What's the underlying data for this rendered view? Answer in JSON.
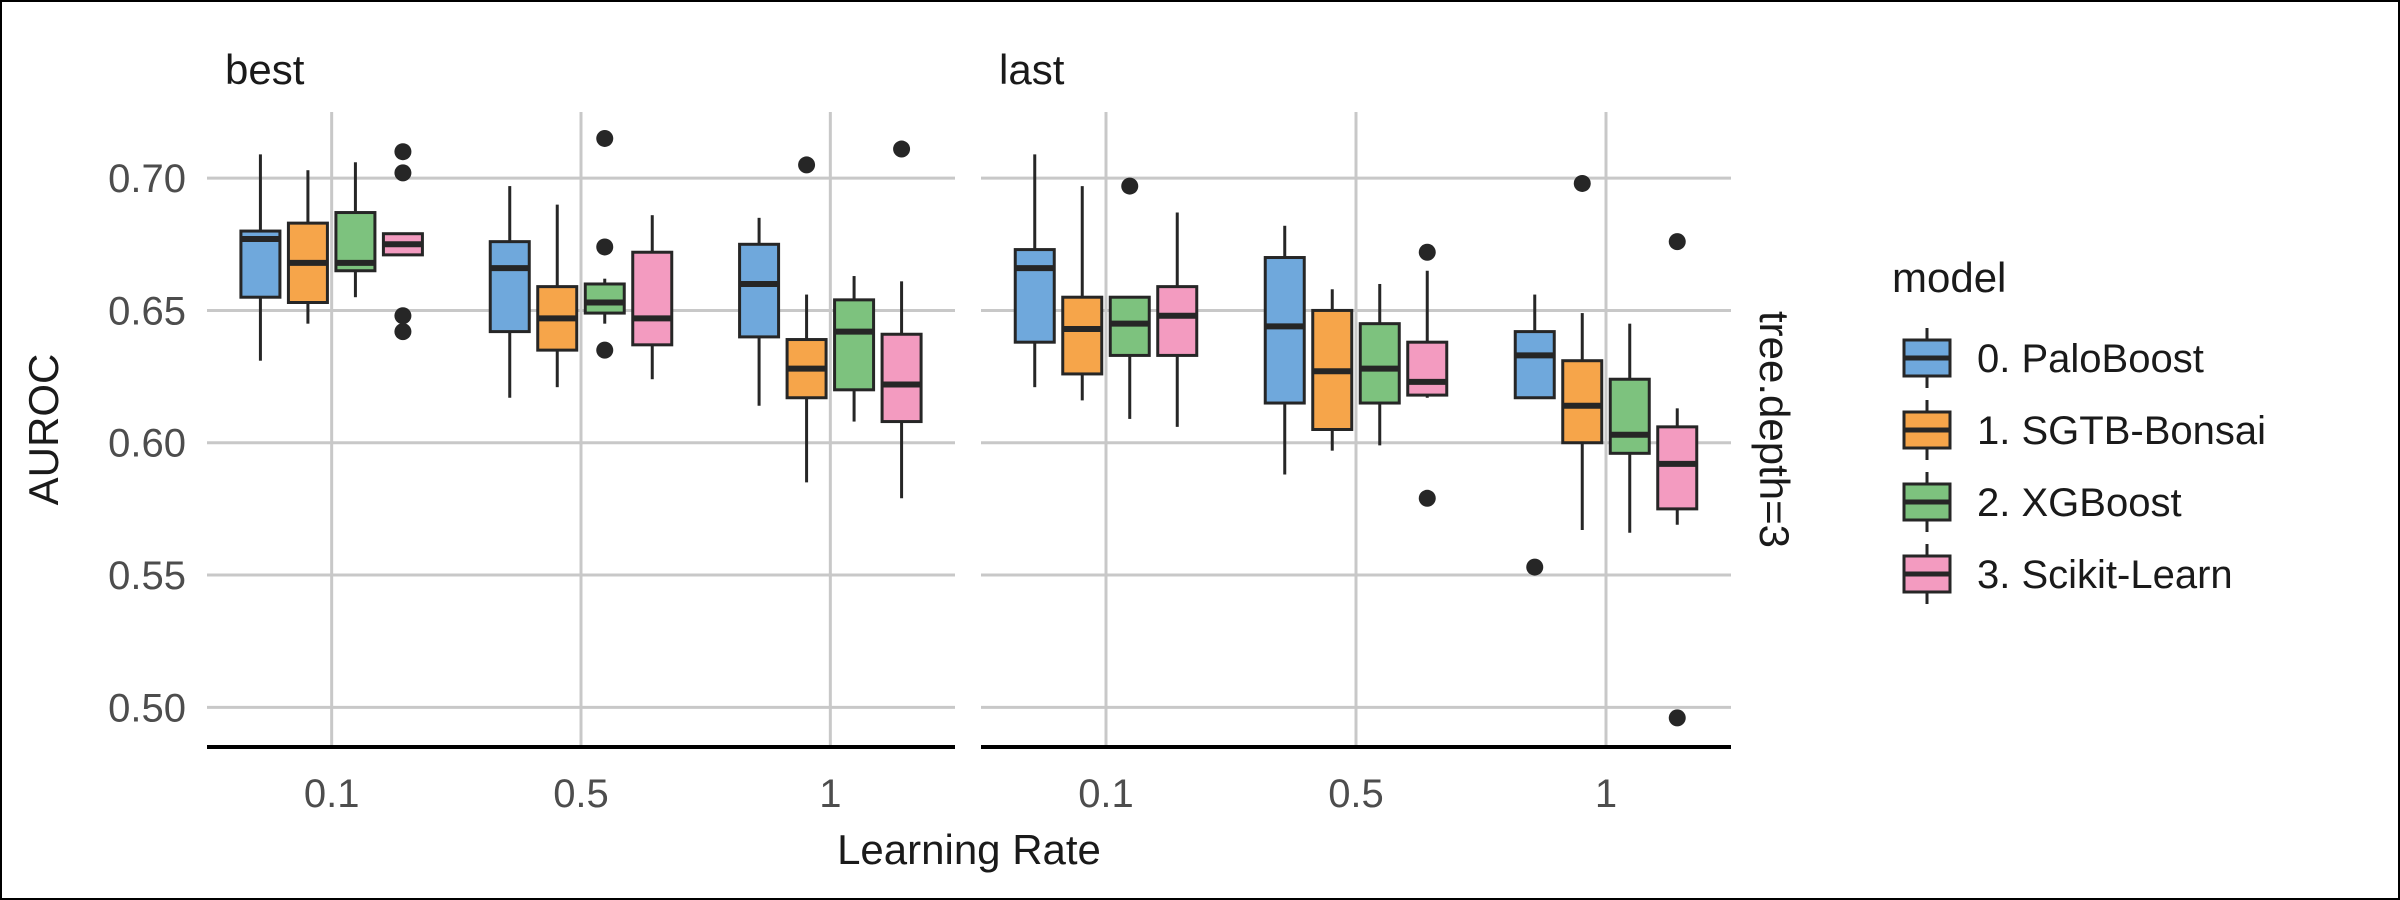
{
  "chart_data": {
    "type": "boxplot",
    "xlabel": "Learning Rate",
    "ylabel": "AUROC",
    "ylim": [
      0.485,
      0.725
    ],
    "yticks": [
      "0.50",
      "0.55",
      "0.60",
      "0.65",
      "0.70"
    ],
    "ytick_values": [
      0.5,
      0.55,
      0.6,
      0.65,
      0.7
    ],
    "categories": [
      "0.1",
      "0.5",
      "1"
    ],
    "row_strip": "tree.depth=3",
    "grid": true,
    "legend": {
      "title": "model",
      "placement": "right",
      "entries": [
        {
          "name": "0. PaloBoost",
          "color": "#6fa8dc"
        },
        {
          "name": "1. SGTB-Bonsai",
          "color": "#f6a54a"
        },
        {
          "name": "2. XGBoost",
          "color": "#7dc27e"
        },
        {
          "name": "3. Scikit-Learn",
          "color": "#f39bc0"
        }
      ]
    },
    "facets": [
      {
        "label": "best",
        "groups": [
          {
            "category": "0.1",
            "boxes": [
              {
                "min": 0.631,
                "q1": 0.655,
                "median": 0.677,
                "q3": 0.68,
                "max": 0.709,
                "outliers": []
              },
              {
                "min": 0.645,
                "q1": 0.653,
                "median": 0.668,
                "q3": 0.683,
                "max": 0.703,
                "outliers": []
              },
              {
                "min": 0.655,
                "q1": 0.665,
                "median": 0.668,
                "q3": 0.687,
                "max": 0.706,
                "outliers": []
              },
              {
                "min": 0.671,
                "q1": 0.671,
                "median": 0.675,
                "q3": 0.679,
                "max": 0.679,
                "outliers": [
                  0.71,
                  0.702,
                  0.648,
                  0.642
                ]
              }
            ]
          },
          {
            "category": "0.5",
            "boxes": [
              {
                "min": 0.617,
                "q1": 0.642,
                "median": 0.666,
                "q3": 0.676,
                "max": 0.697,
                "outliers": []
              },
              {
                "min": 0.621,
                "q1": 0.635,
                "median": 0.647,
                "q3": 0.659,
                "max": 0.69,
                "outliers": []
              },
              {
                "min": 0.645,
                "q1": 0.649,
                "median": 0.653,
                "q3": 0.66,
                "max": 0.662,
                "outliers": [
                  0.715,
                  0.674,
                  0.635
                ]
              },
              {
                "min": 0.624,
                "q1": 0.637,
                "median": 0.647,
                "q3": 0.672,
                "max": 0.686,
                "outliers": []
              }
            ]
          },
          {
            "category": "1",
            "boxes": [
              {
                "min": 0.614,
                "q1": 0.64,
                "median": 0.66,
                "q3": 0.675,
                "max": 0.685,
                "outliers": []
              },
              {
                "min": 0.585,
                "q1": 0.617,
                "median": 0.628,
                "q3": 0.639,
                "max": 0.656,
                "outliers": [
                  0.705
                ]
              },
              {
                "min": 0.608,
                "q1": 0.62,
                "median": 0.642,
                "q3": 0.654,
                "max": 0.663,
                "outliers": []
              },
              {
                "min": 0.579,
                "q1": 0.608,
                "median": 0.622,
                "q3": 0.641,
                "max": 0.661,
                "outliers": [
                  0.711
                ]
              }
            ]
          }
        ]
      },
      {
        "label": "last",
        "groups": [
          {
            "category": "0.1",
            "boxes": [
              {
                "min": 0.621,
                "q1": 0.638,
                "median": 0.666,
                "q3": 0.673,
                "max": 0.709,
                "outliers": []
              },
              {
                "min": 0.616,
                "q1": 0.626,
                "median": 0.643,
                "q3": 0.655,
                "max": 0.697,
                "outliers": []
              },
              {
                "min": 0.609,
                "q1": 0.633,
                "median": 0.645,
                "q3": 0.655,
                "max": 0.655,
                "outliers": [
                  0.697
                ]
              },
              {
                "min": 0.606,
                "q1": 0.633,
                "median": 0.648,
                "q3": 0.659,
                "max": 0.687,
                "outliers": []
              }
            ]
          },
          {
            "category": "0.5",
            "boxes": [
              {
                "min": 0.588,
                "q1": 0.615,
                "median": 0.644,
                "q3": 0.67,
                "max": 0.682,
                "outliers": []
              },
              {
                "min": 0.597,
                "q1": 0.605,
                "median": 0.627,
                "q3": 0.65,
                "max": 0.658,
                "outliers": []
              },
              {
                "min": 0.599,
                "q1": 0.615,
                "median": 0.628,
                "q3": 0.645,
                "max": 0.66,
                "outliers": []
              },
              {
                "min": 0.617,
                "q1": 0.618,
                "median": 0.623,
                "q3": 0.638,
                "max": 0.665,
                "outliers": [
                  0.672,
                  0.579
                ]
              }
            ]
          },
          {
            "category": "1",
            "boxes": [
              {
                "min": 0.617,
                "q1": 0.617,
                "median": 0.633,
                "q3": 0.642,
                "max": 0.656,
                "outliers": [
                  0.553
                ]
              },
              {
                "min": 0.567,
                "q1": 0.6,
                "median": 0.614,
                "q3": 0.631,
                "max": 0.649,
                "outliers": [
                  0.698
                ]
              },
              {
                "min": 0.566,
                "q1": 0.596,
                "median": 0.603,
                "q3": 0.624,
                "max": 0.645,
                "outliers": []
              },
              {
                "min": 0.569,
                "q1": 0.575,
                "median": 0.592,
                "q3": 0.606,
                "max": 0.613,
                "outliers": [
                  0.676,
                  0.496
                ]
              }
            ]
          }
        ]
      }
    ]
  }
}
